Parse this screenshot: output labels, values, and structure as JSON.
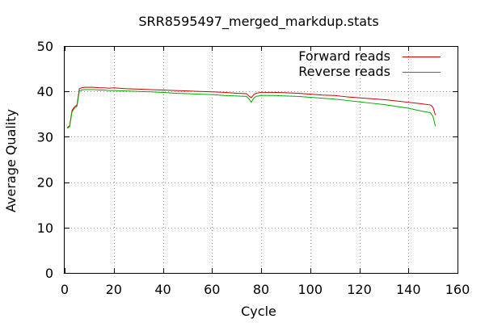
{
  "chart_data": {
    "type": "line",
    "title": "SRR8595497_merged_markdup.stats",
    "xlabel": "Cycle",
    "ylabel": "Average Quality",
    "xlim": [
      0,
      160
    ],
    "ylim": [
      0,
      50
    ],
    "xticks": [
      0,
      20,
      40,
      60,
      80,
      100,
      120,
      140,
      160
    ],
    "yticks": [
      0,
      10,
      20,
      30,
      40,
      50
    ],
    "grid": true,
    "legend_position": "top-right",
    "series": [
      {
        "name": "Forward reads",
        "color": "#cc0000",
        "points": [
          [
            1,
            32.0
          ],
          [
            2,
            32.4
          ],
          [
            3,
            35.8
          ],
          [
            4,
            36.6
          ],
          [
            5,
            37.0
          ],
          [
            6,
            40.6
          ],
          [
            7,
            40.8
          ],
          [
            8,
            40.9
          ],
          [
            10,
            40.9
          ],
          [
            12,
            40.9
          ],
          [
            14,
            40.8
          ],
          [
            16,
            40.8
          ],
          [
            18,
            40.7
          ],
          [
            20,
            40.8
          ],
          [
            25,
            40.6
          ],
          [
            30,
            40.5
          ],
          [
            35,
            40.4
          ],
          [
            40,
            40.3
          ],
          [
            45,
            40.2
          ],
          [
            50,
            40.1
          ],
          [
            55,
            40.0
          ],
          [
            60,
            39.9
          ],
          [
            65,
            39.8
          ],
          [
            70,
            39.6
          ],
          [
            74,
            39.5
          ],
          [
            75,
            39.0
          ],
          [
            76,
            38.6
          ],
          [
            77,
            39.3
          ],
          [
            78,
            39.6
          ],
          [
            80,
            39.8
          ],
          [
            85,
            39.8
          ],
          [
            90,
            39.7
          ],
          [
            95,
            39.6
          ],
          [
            100,
            39.4
          ],
          [
            105,
            39.2
          ],
          [
            110,
            39.1
          ],
          [
            115,
            38.8
          ],
          [
            120,
            38.6
          ],
          [
            125,
            38.4
          ],
          [
            130,
            38.2
          ],
          [
            135,
            37.9
          ],
          [
            140,
            37.6
          ],
          [
            145,
            37.3
          ],
          [
            149,
            37.0
          ],
          [
            150,
            36.5
          ],
          [
            151,
            34.8
          ]
        ]
      },
      {
        "name": "Reverse reads",
        "color": "#00aa00",
        "points": [
          [
            1,
            31.9
          ],
          [
            2,
            32.2
          ],
          [
            3,
            35.5
          ],
          [
            4,
            36.3
          ],
          [
            5,
            36.7
          ],
          [
            6,
            40.1
          ],
          [
            7,
            40.3
          ],
          [
            8,
            40.4
          ],
          [
            10,
            40.4
          ],
          [
            12,
            40.4
          ],
          [
            14,
            40.3
          ],
          [
            16,
            40.3
          ],
          [
            18,
            40.2
          ],
          [
            20,
            40.2
          ],
          [
            25,
            40.1
          ],
          [
            30,
            40.0
          ],
          [
            35,
            39.9
          ],
          [
            40,
            39.8
          ],
          [
            45,
            39.6
          ],
          [
            50,
            39.5
          ],
          [
            55,
            39.4
          ],
          [
            60,
            39.3
          ],
          [
            65,
            39.1
          ],
          [
            70,
            39.0
          ],
          [
            74,
            38.9
          ],
          [
            75,
            38.4
          ],
          [
            76,
            37.6
          ],
          [
            77,
            38.5
          ],
          [
            78,
            38.9
          ],
          [
            80,
            39.1
          ],
          [
            85,
            39.1
          ],
          [
            90,
            39.0
          ],
          [
            95,
            38.9
          ],
          [
            100,
            38.7
          ],
          [
            105,
            38.5
          ],
          [
            110,
            38.3
          ],
          [
            115,
            38.0
          ],
          [
            120,
            37.7
          ],
          [
            125,
            37.4
          ],
          [
            130,
            37.1
          ],
          [
            135,
            36.7
          ],
          [
            140,
            36.3
          ],
          [
            145,
            35.7
          ],
          [
            149,
            35.3
          ],
          [
            150,
            34.5
          ],
          [
            151,
            32.3
          ]
        ]
      }
    ]
  }
}
